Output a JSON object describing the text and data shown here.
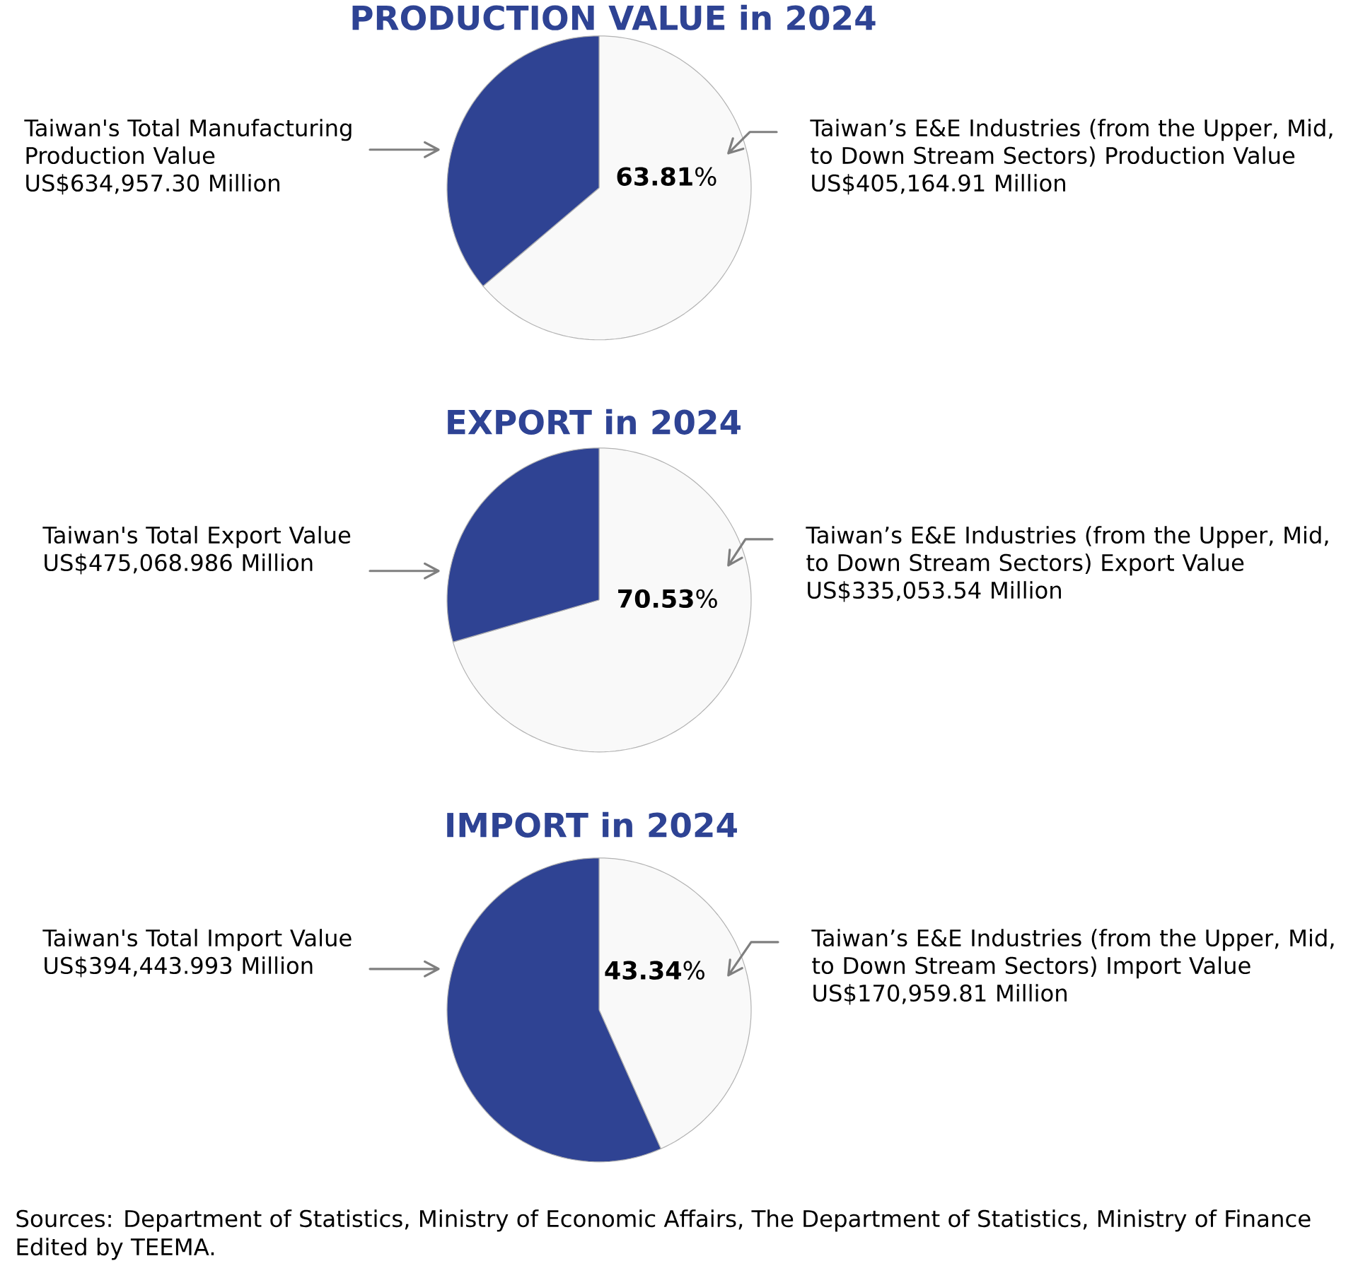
{
  "chart_data": [
    {
      "type": "pie",
      "title": "PRODUCTION VALUE in 2024",
      "categories": [
        "Taiwan’s E&E Industries (from the Upper, Mid,\nto Down Stream Sectors) Production Value\nUS$405,164.91 Million",
        "Taiwan's Total Manufacturing\nProduction Value\nUS$634,957.30 Million"
      ],
      "values": [
        63.81,
        36.19
      ],
      "colors": [
        "#f9f9f9",
        "#2f4393"
      ],
      "value_labels": [
        "**63.81**%",
        null
      ]
    },
    {
      "type": "pie",
      "title": "EXPORT in 2024",
      "categories": [
        "Taiwan’s E&E Industries (from the Upper, Mid,\nto Down Stream Sectors) Export Value\nUS$335,053.54 Million",
        "Taiwan's Total Export Value\nUS$475,068.986 Million"
      ],
      "values": [
        70.53,
        29.47
      ],
      "colors": [
        "#f9f9f9",
        "#2f4393"
      ],
      "value_labels": [
        "**70.53**%",
        null
      ]
    },
    {
      "type": "pie",
      "title": "IMPORT in 2024",
      "categories": [
        "Taiwan’s E&E Industries (from the Upper, Mid,\nto Down Stream Sectors) Import Value\nUS$170,959.81 Million",
        "Taiwan's Total Import Value\nUS$394,443.993 Million"
      ],
      "values": [
        43.34,
        56.66
      ],
      "colors": [
        "#f9f9f9",
        "#2f4393"
      ],
      "value_labels": [
        "**43.34**%",
        null
      ],
      "annotations": [
        "Sources: Department of Statistics, Ministry of Economic Affairs, The Department of Statistics, Ministry of Finance",
        "Edited by TEEMA."
      ]
    }
  ]
}
